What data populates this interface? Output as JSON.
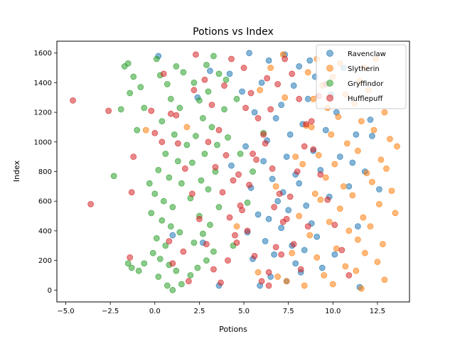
{
  "chart_data": {
    "type": "scatter",
    "title": "Potions vs Index",
    "xlabel": "Potions",
    "ylabel": "Index",
    "xlim": [
      -5.5,
      14.3
    ],
    "ylim": [
      -80,
      1680
    ],
    "xticks": [
      -5.0,
      -2.5,
      0.0,
      2.5,
      5.0,
      7.5,
      10.0,
      12.5
    ],
    "xtick_labels": [
      "−5.0",
      "−2.5",
      "0.0",
      "2.5",
      "5.0",
      "7.5",
      "10.0",
      "12.5"
    ],
    "yticks": [
      0,
      200,
      400,
      600,
      800,
      1000,
      1200,
      1400,
      1600
    ],
    "ytick_labels": [
      "0",
      "200",
      "400",
      "600",
      "800",
      "1000",
      "1200",
      "1400",
      "1600"
    ],
    "grid": false,
    "legend_position": "top-right",
    "series": [
      {
        "name": "Ravenclaw",
        "color": "#1f77b4",
        "points": [
          [
            0.2,
            1580
          ],
          [
            2.4,
            1300
          ],
          [
            3.1,
            1480
          ],
          [
            4.2,
            1460
          ],
          [
            5.3,
            1600
          ],
          [
            6.4,
            1550
          ],
          [
            7.3,
            1590
          ],
          [
            8.1,
            1510
          ],
          [
            9.0,
            1440
          ],
          [
            6.0,
            1400
          ],
          [
            7.8,
            1380
          ],
          [
            4.9,
            1340
          ],
          [
            8.6,
            1290
          ],
          [
            7.1,
            1250
          ],
          [
            5.6,
            1200
          ],
          [
            6.8,
            1160
          ],
          [
            8.3,
            1120
          ],
          [
            9.6,
            1080
          ],
          [
            7.6,
            1050
          ],
          [
            6.3,
            1010
          ],
          [
            5.1,
            970
          ],
          [
            8.9,
            940
          ],
          [
            7.4,
            900
          ],
          [
            6.1,
            870
          ],
          [
            4.3,
            840
          ],
          [
            9.3,
            810
          ],
          [
            7.9,
            780
          ],
          [
            6.6,
            750
          ],
          [
            8.1,
            720
          ],
          [
            5.4,
            690
          ],
          [
            7.2,
            660
          ],
          [
            9.8,
            630
          ],
          [
            6.9,
            600
          ],
          [
            8.5,
            570
          ],
          [
            7.5,
            540
          ],
          [
            5.8,
            510
          ],
          [
            6.4,
            480
          ],
          [
            8.8,
            450
          ],
          [
            7.1,
            420
          ],
          [
            5.2,
            390
          ],
          [
            9.1,
            360
          ],
          [
            6.2,
            330
          ],
          [
            7.7,
            300
          ],
          [
            8.4,
            270
          ],
          [
            6.7,
            240
          ],
          [
            5.5,
            210
          ],
          [
            7.9,
            180
          ],
          [
            9.4,
            150
          ],
          [
            8.2,
            120
          ],
          [
            6.5,
            90
          ],
          [
            7.4,
            60
          ],
          [
            5.9,
            30
          ],
          [
            3.6,
            30
          ],
          [
            1.0,
            370
          ],
          [
            2.7,
            320
          ],
          [
            10.4,
            900
          ],
          [
            11.1,
            860
          ],
          [
            11.8,
            800
          ],
          [
            10.9,
            700
          ],
          [
            12.6,
            680
          ],
          [
            11.3,
            1050
          ],
          [
            10.2,
            1200
          ],
          [
            12.1,
            1150
          ],
          [
            9.9,
            1320
          ],
          [
            10.6,
            1500
          ],
          [
            11.5,
            20
          ],
          [
            10.1,
            240
          ],
          [
            12.2,
            1040
          ],
          [
            11.4,
            430
          ],
          [
            8.7,
            1550
          ]
        ]
      },
      {
        "name": "Slytherin",
        "color": "#ff7f0e",
        "points": [
          [
            7.2,
            1590
          ],
          [
            9.1,
            1560
          ],
          [
            10.4,
            1530
          ],
          [
            11.8,
            1500
          ],
          [
            12.4,
            1560
          ],
          [
            8.6,
            1470
          ],
          [
            10.0,
            1440
          ],
          [
            11.5,
            1410
          ],
          [
            9.4,
            1380
          ],
          [
            12.0,
            1350
          ],
          [
            10.7,
            1320
          ],
          [
            8.9,
            1290
          ],
          [
            11.2,
            1260
          ],
          [
            9.7,
            1230
          ],
          [
            12.9,
            1200
          ],
          [
            10.3,
            1170
          ],
          [
            11.6,
            1140
          ],
          [
            8.5,
            1110
          ],
          [
            12.3,
            1080
          ],
          [
            9.9,
            1050
          ],
          [
            13.2,
            1020
          ],
          [
            10.8,
            990
          ],
          [
            13.6,
            970
          ],
          [
            11.4,
            940
          ],
          [
            9.2,
            910
          ],
          [
            12.7,
            880
          ],
          [
            10.1,
            850
          ],
          [
            13.0,
            820
          ],
          [
            11.9,
            790
          ],
          [
            9.6,
            760
          ],
          [
            12.2,
            730
          ],
          [
            10.6,
            700
          ],
          [
            13.3,
            670
          ],
          [
            11.1,
            640
          ],
          [
            9.3,
            610
          ],
          [
            12.6,
            580
          ],
          [
            10.4,
            550
          ],
          [
            13.5,
            520
          ],
          [
            11.7,
            490
          ],
          [
            9.8,
            460
          ],
          [
            12.1,
            430
          ],
          [
            10.9,
            400
          ],
          [
            8.7,
            370
          ],
          [
            11.4,
            340
          ],
          [
            12.8,
            310
          ],
          [
            10.2,
            280
          ],
          [
            11.8,
            250
          ],
          [
            9.1,
            220
          ],
          [
            12.5,
            190
          ],
          [
            10.7,
            160
          ],
          [
            11.3,
            130
          ],
          [
            9.5,
            100
          ],
          [
            12.9,
            70
          ],
          [
            10.0,
            40
          ],
          [
            11.6,
            10
          ],
          [
            8.4,
            30
          ],
          [
            7.4,
            60
          ],
          [
            6.9,
            90
          ],
          [
            5.8,
            120
          ],
          [
            7.7,
            250
          ],
          [
            8.1,
            500
          ],
          [
            6.8,
            700
          ],
          [
            7.9,
            900
          ],
          [
            8.8,
            1100
          ],
          [
            7.3,
            1300
          ],
          [
            6.5,
            1500
          ],
          [
            5.9,
            1350
          ],
          [
            8.3,
            850
          ],
          [
            9.0,
            650
          ],
          [
            -0.5,
            1080
          ],
          [
            1.8,
            1100
          ],
          [
            4.6,
            430
          ]
        ]
      },
      {
        "name": "Gryffindor",
        "color": "#2ca02c",
        "points": [
          [
            -1.7,
            1510
          ],
          [
            -1.5,
            1530
          ],
          [
            -1.2,
            1440
          ],
          [
            -1.4,
            1330
          ],
          [
            -0.8,
            1370
          ],
          [
            -0.6,
            1230
          ],
          [
            -1.9,
            1220
          ],
          [
            -1.0,
            1080
          ],
          [
            0.1,
            1560
          ],
          [
            0.3,
            1450
          ],
          [
            0.7,
            1390
          ],
          [
            1.2,
            1510
          ],
          [
            1.6,
            1470
          ],
          [
            0.9,
            1290
          ],
          [
            1.4,
            1230
          ],
          [
            0.4,
            1140
          ],
          [
            1.1,
            1050
          ],
          [
            1.8,
            980
          ],
          [
            0.6,
            920
          ],
          [
            1.3,
            870
          ],
          [
            0.2,
            810
          ],
          [
            0.8,
            760
          ],
          [
            1.5,
            720
          ],
          [
            -0.3,
            720
          ],
          [
            0.0,
            650
          ],
          [
            0.5,
            600
          ],
          [
            1.0,
            560
          ],
          [
            -0.2,
            520
          ],
          [
            0.4,
            470
          ],
          [
            0.9,
            430
          ],
          [
            1.4,
            390
          ],
          [
            0.1,
            350
          ],
          [
            0.6,
            300
          ],
          [
            -0.1,
            250
          ],
          [
            0.3,
            210
          ],
          [
            0.8,
            170
          ],
          [
            1.2,
            130
          ],
          [
            -0.6,
            180
          ],
          [
            -1.3,
            150
          ],
          [
            -1.5,
            180
          ],
          [
            -0.9,
            130
          ],
          [
            0.2,
            90
          ],
          [
            0.7,
            30
          ],
          [
            1.0,
            0
          ],
          [
            1.5,
            40
          ],
          [
            2.0,
            100
          ],
          [
            2.4,
            150
          ],
          [
            2.9,
            200
          ],
          [
            3.3,
            260
          ],
          [
            2.2,
            320
          ],
          [
            2.7,
            380
          ],
          [
            3.1,
            440
          ],
          [
            2.5,
            500
          ],
          [
            3.6,
            560
          ],
          [
            2.0,
            620
          ],
          [
            3.0,
            680
          ],
          [
            2.6,
            740
          ],
          [
            3.4,
            800
          ],
          [
            2.1,
            860
          ],
          [
            2.8,
            920
          ],
          [
            3.5,
            980
          ],
          [
            2.3,
            1040
          ],
          [
            3.2,
            1100
          ],
          [
            2.7,
            1160
          ],
          [
            3.9,
            1220
          ],
          [
            2.5,
            1280
          ],
          [
            3.0,
            1340
          ],
          [
            2.2,
            1400
          ],
          [
            3.6,
            1460
          ],
          [
            2.9,
            1520
          ],
          [
            3.3,
            1580
          ],
          [
            -2.3,
            770
          ],
          [
            4.1,
            1030
          ],
          [
            4.8,
            920
          ],
          [
            5.2,
            590
          ],
          [
            4.4,
            300
          ],
          [
            4.0,
            1420
          ],
          [
            4.6,
            1290
          ],
          [
            5.5,
            800
          ],
          [
            6.1,
            1060
          ]
        ]
      },
      {
        "name": "Hufflepuff",
        "color": "#d62728",
        "points": [
          [
            -4.6,
            1280
          ],
          [
            -3.6,
            580
          ],
          [
            -2.6,
            1210
          ],
          [
            -1.2,
            900
          ],
          [
            -1.3,
            660
          ],
          [
            -1.4,
            220
          ],
          [
            -0.2,
            1210
          ],
          [
            0.0,
            1060
          ],
          [
            0.5,
            1460
          ],
          [
            0.9,
            1190
          ],
          [
            1.3,
            990
          ],
          [
            1.7,
            820
          ],
          [
            2.1,
            650
          ],
          [
            2.5,
            480
          ],
          [
            2.9,
            310
          ],
          [
            3.3,
            140
          ],
          [
            3.7,
            50
          ],
          [
            4.1,
            200
          ],
          [
            4.5,
            370
          ],
          [
            4.9,
            540
          ],
          [
            5.3,
            710
          ],
          [
            5.7,
            880
          ],
          [
            6.1,
            1050
          ],
          [
            6.5,
            1220
          ],
          [
            6.9,
            1390
          ],
          [
            7.3,
            1560
          ],
          [
            7.7,
            1460
          ],
          [
            8.1,
            1290
          ],
          [
            8.5,
            1120
          ],
          [
            8.9,
            950
          ],
          [
            9.3,
            780
          ],
          [
            9.7,
            610
          ],
          [
            10.1,
            440
          ],
          [
            10.5,
            270
          ],
          [
            10.9,
            100
          ],
          [
            2.3,
            1590
          ],
          [
            2.8,
            1420
          ],
          [
            3.2,
            1250
          ],
          [
            3.6,
            1080
          ],
          [
            4.0,
            910
          ],
          [
            4.4,
            740
          ],
          [
            4.8,
            570
          ],
          [
            5.2,
            400
          ],
          [
            5.6,
            230
          ],
          [
            6.0,
            60
          ],
          [
            6.4,
            120
          ],
          [
            6.8,
            290
          ],
          [
            7.2,
            460
          ],
          [
            7.6,
            630
          ],
          [
            8.0,
            800
          ],
          [
            8.4,
            970
          ],
          [
            8.8,
            1140
          ],
          [
            9.2,
            1310
          ],
          [
            5.0,
            1500
          ],
          [
            5.4,
            1330
          ],
          [
            5.8,
            1160
          ],
          [
            6.2,
            990
          ],
          [
            6.6,
            820
          ],
          [
            7.0,
            650
          ],
          [
            7.4,
            480
          ],
          [
            7.8,
            310
          ],
          [
            8.2,
            140
          ],
          [
            3.0,
            1000
          ],
          [
            3.4,
            830
          ],
          [
            3.8,
            660
          ],
          [
            4.2,
            490
          ],
          [
            4.6,
            320
          ],
          [
            1.6,
            260
          ],
          [
            1.9,
            60
          ],
          [
            2.2,
            1350
          ],
          [
            1.2,
            1180
          ],
          [
            0.4,
            1000
          ],
          [
            0.8,
            330
          ],
          [
            1.0,
            180
          ],
          [
            4.3,
            1560
          ],
          [
            6.3,
            1430
          ],
          [
            5.5,
            920
          ],
          [
            4.7,
            780
          ],
          [
            6.7,
            560
          ],
          [
            8.6,
            430
          ],
          [
            7.1,
            240
          ],
          [
            9.6,
            1390
          ],
          [
            6.4,
            30
          ],
          [
            5.1,
            1230
          ],
          [
            3.9,
            1380
          ]
        ]
      }
    ]
  }
}
